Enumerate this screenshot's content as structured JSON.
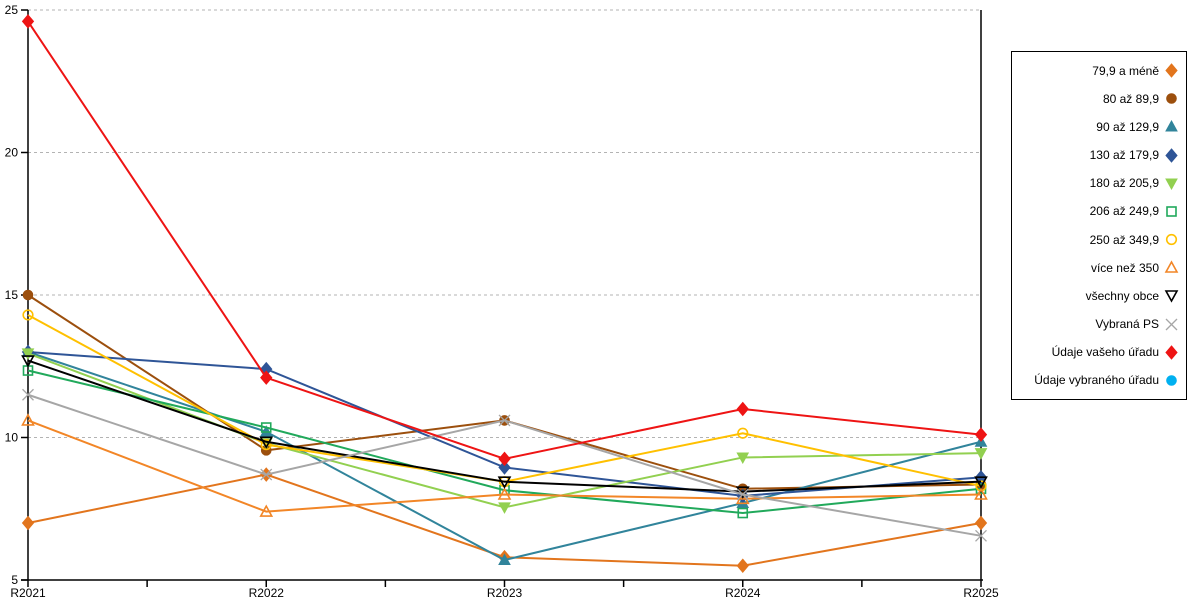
{
  "chart_data": {
    "type": "line",
    "title": "",
    "xlabel": "",
    "ylabel": "",
    "x": [
      "R2021",
      "R2022",
      "R2023",
      "R2024",
      "R2025"
    ],
    "ylim": [
      5,
      25
    ],
    "yticks": [
      5,
      10,
      15,
      20,
      25
    ],
    "grid": "horizontal-dashed",
    "gridline_color": "#b3b3b3",
    "axis_color": "#000000",
    "legend_position": "right-outside",
    "series": [
      {
        "name": "79,9 a méně",
        "color": "#e2751d",
        "marker": "diamond",
        "fill": "solid",
        "values": [
          7.0,
          8.7,
          5.8,
          5.5,
          7.0
        ]
      },
      {
        "name": "80 až 89,9",
        "color": "#9c4f0d",
        "marker": "circle",
        "fill": "solid",
        "values": [
          15.0,
          9.55,
          10.6,
          8.2,
          8.35
        ]
      },
      {
        "name": "90 až 129,9",
        "color": "#31849b",
        "marker": "triangle-up",
        "fill": "solid",
        "values": [
          13.0,
          10.2,
          5.7,
          7.7,
          9.85
        ]
      },
      {
        "name": "130 až 179,9",
        "color": "#2f5597",
        "marker": "diamond",
        "fill": "solid",
        "values": [
          13.0,
          12.4,
          8.95,
          7.95,
          8.6
        ]
      },
      {
        "name": "180 až 205,9",
        "color": "#92d050",
        "marker": "triangle-down",
        "fill": "solid",
        "values": [
          12.95,
          9.8,
          7.55,
          9.3,
          9.45
        ]
      },
      {
        "name": "206 až 249,9",
        "color": "#21a95b",
        "marker": "square",
        "fill": "open",
        "values": [
          12.35,
          10.35,
          8.15,
          7.35,
          8.2
        ]
      },
      {
        "name": "250 až 349,9",
        "color": "#ffc000",
        "marker": "circle",
        "fill": "open",
        "values": [
          14.3,
          9.75,
          8.45,
          10.15,
          8.3
        ]
      },
      {
        "name": "více než 350",
        "color": "#f28627",
        "marker": "triangle-up",
        "fill": "open",
        "values": [
          10.6,
          7.4,
          8.0,
          7.85,
          8.0
        ]
      },
      {
        "name": "všechny obce",
        "color": "#000000",
        "marker": "triangle-down",
        "fill": "open",
        "values": [
          12.7,
          9.85,
          8.45,
          8.1,
          8.45
        ]
      },
      {
        "name": "Vybraná PS",
        "color": "#a6a6a6",
        "marker": "x",
        "fill": "open",
        "values": [
          11.5,
          8.7,
          10.6,
          8.0,
          6.55
        ]
      },
      {
        "name": "Údaje vašeho úřadu",
        "color": "#ee1414",
        "marker": "diamond",
        "fill": "solid",
        "values": [
          24.6,
          12.1,
          9.25,
          11.0,
          10.1
        ]
      },
      {
        "name": "Údaje vybraného úřadu",
        "color": "#00b0f0",
        "marker": "circle",
        "fill": "solid",
        "values": []
      }
    ]
  }
}
